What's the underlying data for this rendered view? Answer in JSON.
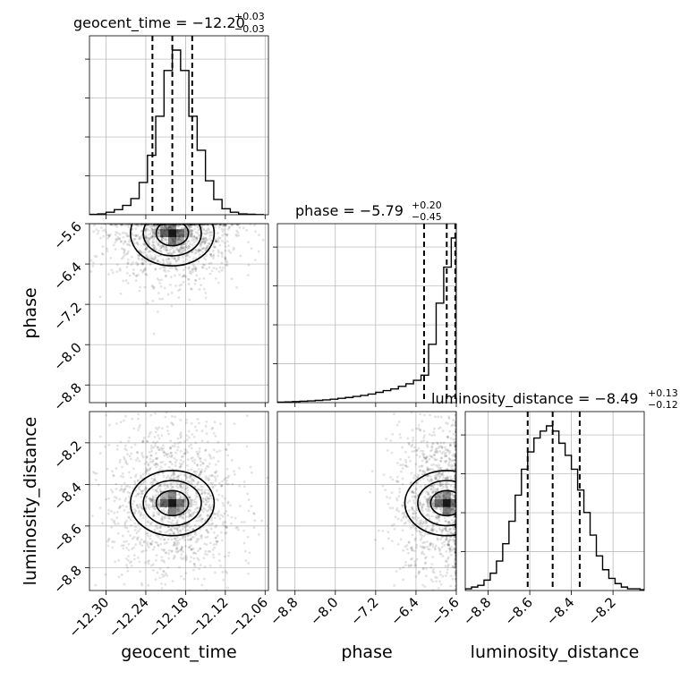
{
  "chart_data": {
    "type": "corner",
    "parameters": [
      {
        "name": "geocent_time",
        "axis_label": "geocent_time",
        "title_main": "geocent_time = −12.20",
        "title_plus": "+0.03",
        "title_minus": "−0.03",
        "range": [
          -12.325,
          -12.055
        ],
        "ticks": [
          -12.3,
          -12.24,
          -12.18,
          -12.12,
          -12.06
        ],
        "tick_labels": [
          "−12.30",
          "−12.24",
          "−12.18",
          "−12.12",
          "−12.06"
        ],
        "quantiles": [
          -12.23,
          -12.2,
          -12.17
        ],
        "histogram": {
          "bin_edges": [
            -12.325,
            -12.3125,
            -12.3,
            -12.2875,
            -12.275,
            -12.2625,
            -12.25,
            -12.2375,
            -12.225,
            -12.2125,
            -12.2,
            -12.1875,
            -12.175,
            -12.1625,
            -12.15,
            -12.1375,
            -12.125,
            -12.1125,
            -12.1,
            -12.0875,
            -12.075,
            -12.0625
          ],
          "counts": [
            0.2,
            0.5,
            1.5,
            3,
            5.5,
            9.5,
            19,
            35,
            58,
            85,
            97,
            85,
            58,
            38,
            20,
            9,
            3.5,
            1.5,
            0.5,
            0.3,
            0.1
          ]
        }
      },
      {
        "name": "phase",
        "axis_label": "phase",
        "title_main": "phase = −5.79",
        "title_plus": "+0.20",
        "title_minus": "−0.45",
        "range": [
          -9.15,
          -5.6
        ],
        "ticks": [
          -8.8,
          -8.0,
          -7.2,
          -6.4,
          -5.6
        ],
        "tick_labels": [
          "−8.8",
          "−8.0",
          "−7.2",
          "−6.4",
          "−5.6"
        ],
        "quantiles": [
          -6.24,
          -5.79,
          -5.62
        ],
        "histogram": {
          "bin_edges": [
            -9.15,
            -9.0,
            -8.85,
            -8.7,
            -8.55,
            -8.4,
            -8.25,
            -8.1,
            -7.95,
            -7.8,
            -7.65,
            -7.5,
            -7.35,
            -7.2,
            -7.05,
            -6.9,
            -6.75,
            -6.6,
            -6.45,
            -6.3,
            -6.15,
            -6.0,
            -5.85,
            -5.7,
            -5.6
          ],
          "counts": [
            0.3,
            0.4,
            0.6,
            0.8,
            1,
            1.3,
            1.6,
            2,
            2.5,
            3,
            3.6,
            4.2,
            5,
            6,
            7,
            8,
            9.5,
            11,
            13,
            16,
            34,
            58,
            79,
            96
          ]
        }
      },
      {
        "name": "luminosity_distance",
        "axis_label": "luminosity_distance",
        "title_main": "luminosity_distance = −8.49",
        "title_plus": "+0.13",
        "title_minus": "−0.12",
        "range": [
          -8.91,
          -8.05
        ],
        "ticks": [
          -8.8,
          -8.6,
          -8.4,
          -8.2
        ],
        "tick_labels": [
          "−8.8",
          "−8.6",
          "−8.4",
          "−8.2"
        ],
        "quantiles": [
          -8.61,
          -8.49,
          -8.36
        ],
        "histogram": {
          "bin_edges": [
            -8.91,
            -8.88,
            -8.85,
            -8.82,
            -8.79,
            -8.76,
            -8.73,
            -8.7,
            -8.67,
            -8.64,
            -8.61,
            -8.58,
            -8.55,
            -8.52,
            -8.49,
            -8.46,
            -8.43,
            -8.4,
            -8.37,
            -8.34,
            -8.31,
            -8.28,
            -8.25,
            -8.22,
            -8.19,
            -8.16,
            -8.13,
            -8.1,
            -8.07,
            -8.05
          ],
          "counts": [
            1,
            2,
            3,
            6,
            10,
            17,
            27,
            40,
            55,
            70,
            80,
            88,
            92,
            95,
            92,
            85,
            78,
            70,
            58,
            45,
            32,
            20,
            12,
            7,
            4,
            2,
            1,
            1,
            0.5
          ]
        }
      }
    ],
    "histogram_y_ticks": 4,
    "grid": true,
    "samples_shown": true,
    "contour_levels": 3
  }
}
